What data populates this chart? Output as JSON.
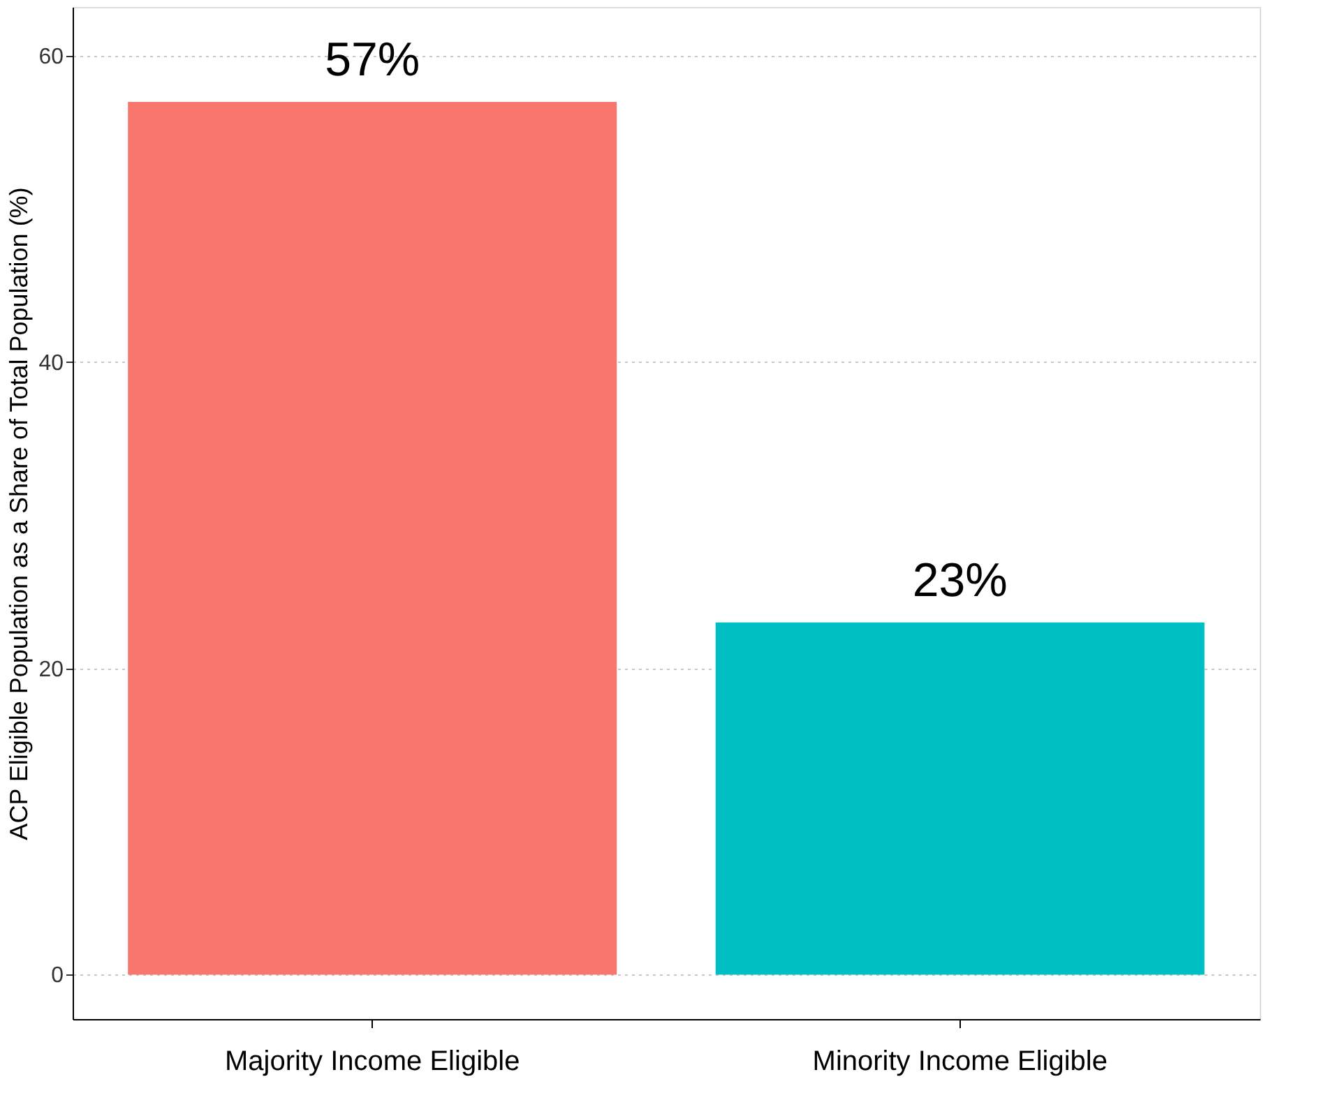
{
  "chart_data": {
    "type": "bar",
    "ylabel": "ACP Eligible Population as a Share of Total Population (%)",
    "categories": [
      "Majority Income Eligible",
      "Minority Income Eligible"
    ],
    "values": [
      57,
      23
    ],
    "colors": [
      "#f8766d",
      "#00bfc4"
    ],
    "value_labels": [
      "57%",
      "23%"
    ],
    "ylim": [
      -2.9,
      63.2
    ],
    "yticks": [
      0,
      20,
      40,
      60
    ],
    "grid": "y"
  }
}
